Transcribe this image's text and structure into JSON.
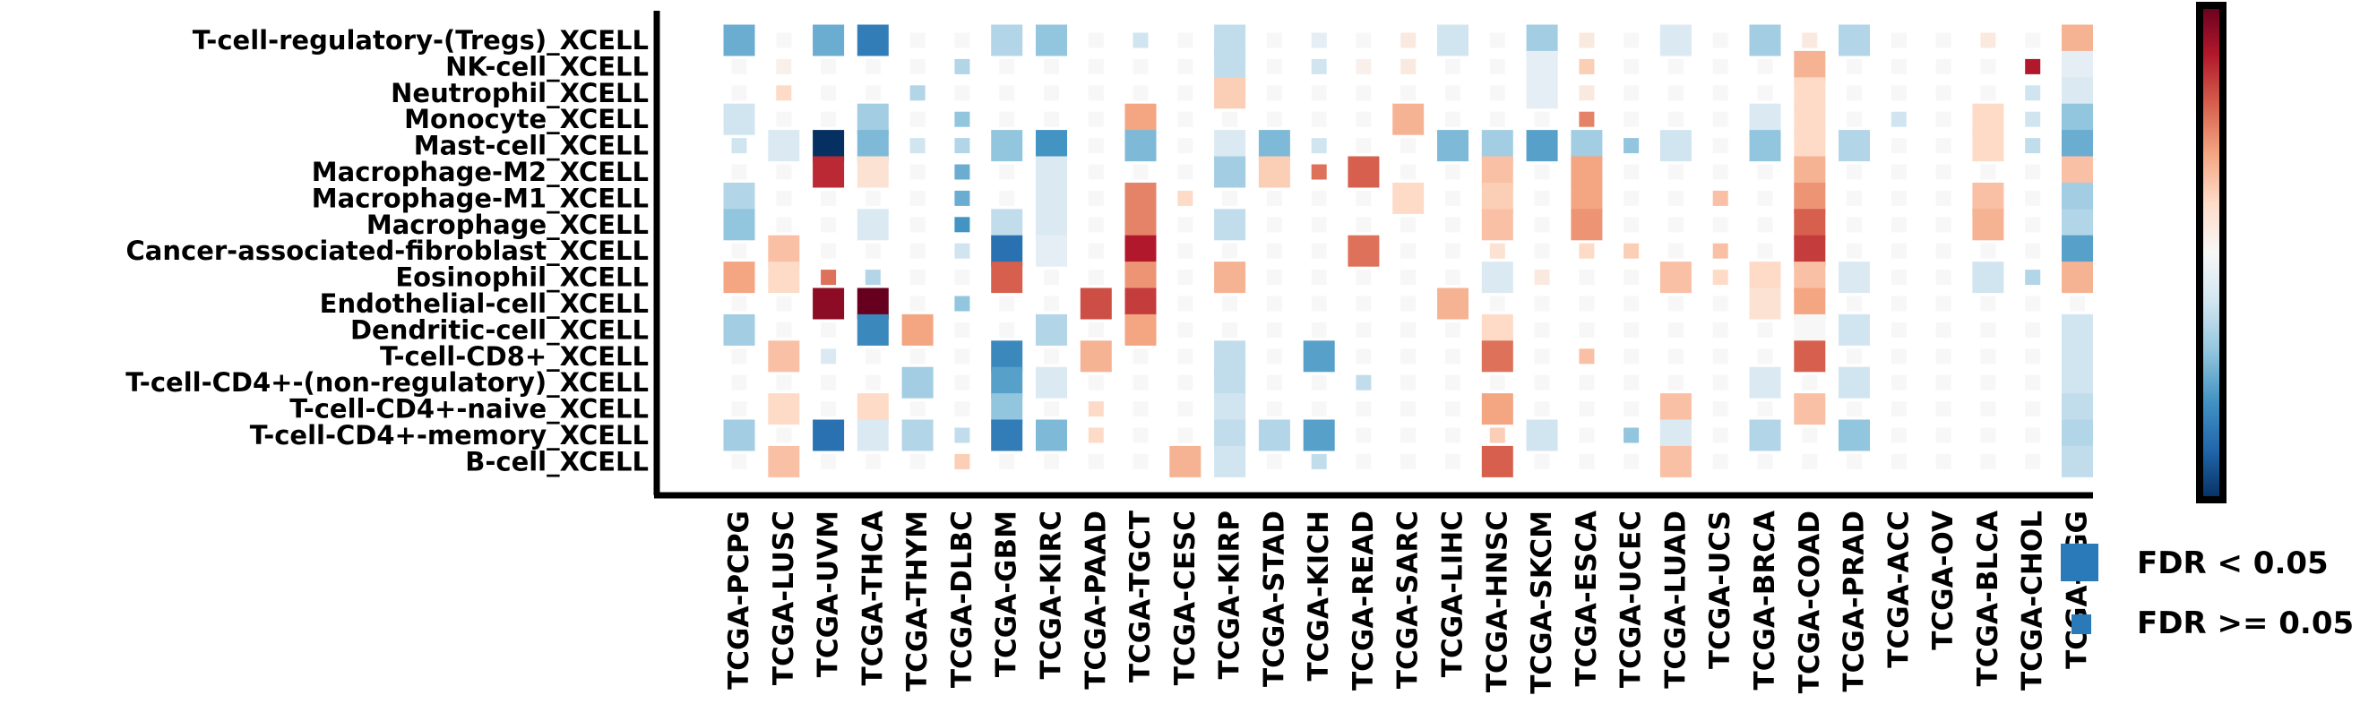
{
  "chart_data": {
    "type": "heatmap",
    "title": "",
    "xlabel": "",
    "ylabel": "",
    "rows": [
      "T-cell-regulatory-(Tregs)_XCELL",
      "NK-cell_XCELL",
      "Neutrophil_XCELL",
      "Monocyte_XCELL",
      "Mast-cell_XCELL",
      "Macrophage-M2_XCELL",
      "Macrophage-M1_XCELL",
      "Macrophage_XCELL",
      "Cancer-associated-fibroblast_XCELL",
      "Eosinophil_XCELL",
      "Endothelial-cell_XCELL",
      "Dendritic-cell_XCELL",
      "T-cell-CD8+_XCELL",
      "T-cell-CD4+-(non-regulatory)_XCELL",
      "T-cell-CD4+-naive_XCELL",
      "T-cell-CD4+-memory_XCELL",
      "B-cell_XCELL"
    ],
    "columns": [
      "TCGA-PCPG",
      "TCGA-LUSC",
      "TCGA-UVM",
      "TCGA-THCA",
      "TCGA-THYM",
      "TCGA-DLBC",
      "TCGA-GBM",
      "TCGA-KIRC",
      "TCGA-PAAD",
      "TCGA-TGCT",
      "TCGA-CESC",
      "TCGA-KIRP",
      "TCGA-STAD",
      "TCGA-KICH",
      "TCGA-READ",
      "TCGA-SARC",
      "TCGA-LIHC",
      "TCGA-HNSC",
      "TCGA-SKCM",
      "TCGA-ESCA",
      "TCGA-UCEC",
      "TCGA-LUAD",
      "TCGA-UCS",
      "TCGA-BRCA",
      "TCGA-COAD",
      "TCGA-PRAD",
      "TCGA-ACC",
      "TCGA-OV",
      "TCGA-BLCA",
      "TCGA-CHOL",
      "TCGA-LGG"
    ],
    "values": [
      [
        -0.5,
        0.0,
        -0.5,
        -0.7,
        0.0,
        0.0,
        -0.3,
        -0.4,
        0.0,
        -0.2,
        0.0,
        -0.25,
        0.0,
        -0.1,
        0.0,
        0.1,
        -0.2,
        0.0,
        -0.35,
        0.1,
        0.0,
        -0.15,
        0.0,
        -0.35,
        0.1,
        -0.3,
        0.0,
        0.0,
        0.1,
        0.0,
        0.35
      ],
      [
        0.0,
        0.05,
        0.0,
        0.0,
        0.0,
        -0.3,
        0.0,
        0.0,
        0.0,
        0.0,
        0.0,
        -0.25,
        0.0,
        -0.2,
        0.05,
        0.1,
        0.0,
        0.0,
        -0.1,
        0.25,
        0.0,
        0.0,
        0.0,
        0.0,
        0.35,
        0.0,
        0.0,
        0.0,
        0.0,
        0.8,
        -0.1
      ],
      [
        0.0,
        0.2,
        0.0,
        0.0,
        -0.3,
        0.0,
        0.0,
        0.0,
        0.0,
        0.0,
        0.0,
        0.25,
        0.0,
        0.0,
        0.0,
        0.0,
        0.0,
        0.0,
        -0.1,
        0.1,
        0.0,
        0.0,
        0.0,
        0.0,
        0.2,
        0.0,
        0.0,
        0.0,
        0.0,
        -0.2,
        -0.15
      ],
      [
        -0.2,
        0.0,
        0.0,
        -0.35,
        0.0,
        -0.4,
        0.0,
        0.0,
        0.0,
        0.4,
        0.0,
        0.0,
        0.0,
        0.0,
        0.0,
        0.35,
        0.0,
        0.0,
        0.0,
        0.5,
        0.0,
        0.0,
        0.0,
        -0.15,
        0.2,
        0.0,
        -0.2,
        0.0,
        0.2,
        -0.2,
        -0.4
      ],
      [
        -0.2,
        -0.15,
        -1.0,
        -0.45,
        -0.2,
        -0.3,
        -0.4,
        -0.6,
        0.0,
        -0.45,
        0.0,
        -0.15,
        -0.45,
        -0.2,
        0.0,
        0.0,
        -0.45,
        -0.35,
        -0.55,
        -0.35,
        -0.4,
        -0.2,
        0.0,
        -0.4,
        0.2,
        -0.3,
        0.0,
        0.0,
        0.2,
        -0.25,
        -0.5
      ],
      [
        0.0,
        0.0,
        0.75,
        0.15,
        0.0,
        -0.5,
        0.0,
        -0.15,
        0.0,
        0.0,
        0.0,
        -0.35,
        0.25,
        0.55,
        0.6,
        0.0,
        0.0,
        0.3,
        0.0,
        0.4,
        0.0,
        0.0,
        0.0,
        0.0,
        0.35,
        0.0,
        0.0,
        0.0,
        0.0,
        0.0,
        0.3
      ],
      [
        -0.3,
        0.0,
        0.0,
        0.0,
        0.0,
        -0.5,
        0.0,
        -0.15,
        0.0,
        0.5,
        0.2,
        0.0,
        0.0,
        0.0,
        0.0,
        0.2,
        0.0,
        0.25,
        0.0,
        0.4,
        0.0,
        0.0,
        0.3,
        0.0,
        0.45,
        0.0,
        0.0,
        0.0,
        0.3,
        0.0,
        -0.35
      ],
      [
        -0.4,
        0.0,
        0.0,
        -0.15,
        0.0,
        -0.6,
        -0.25,
        -0.15,
        0.0,
        0.5,
        0.0,
        -0.25,
        0.0,
        0.0,
        0.0,
        0.0,
        0.0,
        0.3,
        0.0,
        0.45,
        0.0,
        0.0,
        0.0,
        0.0,
        0.6,
        0.0,
        0.0,
        0.0,
        0.35,
        0.0,
        -0.3
      ],
      [
        0.0,
        0.3,
        0.0,
        0.0,
        0.0,
        -0.2,
        -0.75,
        -0.1,
        0.0,
        0.8,
        0.0,
        0.0,
        0.0,
        0.0,
        0.55,
        0.0,
        0.0,
        0.15,
        0.0,
        0.2,
        0.25,
        0.0,
        0.3,
        0.0,
        0.7,
        0.0,
        0.0,
        0.0,
        0.0,
        0.0,
        -0.55
      ],
      [
        0.4,
        0.2,
        0.55,
        -0.3,
        0.0,
        0.0,
        0.6,
        0.0,
        0.0,
        0.45,
        0.0,
        0.35,
        0.0,
        0.0,
        0.0,
        0.0,
        0.0,
        -0.15,
        0.1,
        0.0,
        0.0,
        0.3,
        0.2,
        0.2,
        0.3,
        -0.15,
        0.0,
        0.0,
        -0.2,
        -0.3,
        0.35
      ],
      [
        0.0,
        0.0,
        0.9,
        1.0,
        0.0,
        -0.4,
        0.0,
        0.0,
        0.65,
        0.7,
        0.0,
        0.0,
        0.0,
        0.0,
        0.0,
        0.0,
        0.35,
        0.0,
        0.0,
        0.0,
        0.0,
        0.0,
        0.0,
        0.15,
        0.4,
        0.0,
        0.0,
        0.0,
        0.0,
        0.0,
        0.0
      ],
      [
        -0.35,
        0.0,
        0.0,
        -0.65,
        0.4,
        0.0,
        0.0,
        -0.3,
        0.0,
        0.4,
        0.0,
        0.0,
        0.0,
        0.0,
        0.0,
        0.0,
        0.0,
        0.2,
        0.0,
        0.0,
        0.0,
        0.0,
        0.0,
        0.0,
        0.0,
        -0.2,
        0.0,
        0.0,
        0.0,
        0.0,
        -0.2
      ],
      [
        0.0,
        0.3,
        -0.15,
        0.0,
        0.0,
        0.0,
        -0.65,
        0.0,
        0.35,
        0.0,
        0.0,
        -0.25,
        0.0,
        -0.55,
        0.0,
        0.0,
        0.0,
        0.55,
        0.0,
        0.3,
        0.0,
        0.0,
        0.0,
        0.0,
        0.6,
        0.0,
        0.0,
        0.0,
        0.0,
        0.0,
        -0.2
      ],
      [
        0.0,
        0.0,
        0.0,
        0.0,
        -0.35,
        0.0,
        -0.55,
        -0.15,
        0.0,
        0.0,
        0.0,
        -0.25,
        0.0,
        0.0,
        -0.25,
        0.0,
        0.0,
        0.0,
        0.0,
        0.0,
        0.0,
        0.0,
        0.0,
        -0.15,
        0.0,
        -0.2,
        0.0,
        0.0,
        0.0,
        0.0,
        -0.2
      ],
      [
        0.0,
        0.2,
        0.0,
        0.2,
        0.0,
        0.0,
        -0.4,
        0.0,
        0.2,
        0.0,
        0.0,
        -0.2,
        0.0,
        0.0,
        0.0,
        0.0,
        0.0,
        0.4,
        0.0,
        0.0,
        0.0,
        0.3,
        0.0,
        0.0,
        0.3,
        0.0,
        0.0,
        0.0,
        0.0,
        0.0,
        -0.25
      ],
      [
        -0.35,
        0.0,
        -0.75,
        -0.15,
        -0.3,
        -0.25,
        -0.7,
        -0.45,
        0.2,
        0.0,
        0.0,
        -0.25,
        -0.3,
        -0.55,
        0.0,
        0.0,
        0.0,
        0.25,
        -0.2,
        0.0,
        -0.4,
        -0.15,
        0.0,
        -0.3,
        0.0,
        -0.4,
        0.0,
        0.0,
        0.0,
        0.0,
        -0.3
      ],
      [
        0.0,
        0.3,
        0.0,
        0.0,
        0.0,
        0.25,
        0.0,
        0.0,
        0.0,
        0.0,
        0.35,
        -0.2,
        0.0,
        -0.25,
        0.0,
        0.0,
        0.0,
        0.6,
        0.0,
        0.0,
        0.0,
        0.3,
        0.0,
        0.0,
        0.0,
        0.0,
        0.0,
        0.0,
        0.0,
        0.0,
        -0.25
      ]
    ],
    "significant": [
      [
        1,
        0,
        1,
        1,
        0,
        0,
        1,
        1,
        0,
        0,
        0,
        1,
        0,
        0,
        0,
        0,
        1,
        0,
        1,
        0,
        0,
        1,
        0,
        1,
        0,
        1,
        0,
        0,
        0,
        0,
        1
      ],
      [
        0,
        0,
        0,
        0,
        0,
        0,
        0,
        0,
        0,
        0,
        0,
        1,
        0,
        0,
        0,
        0,
        0,
        0,
        1,
        0,
        0,
        0,
        0,
        0,
        1,
        0,
        0,
        0,
        0,
        0,
        1
      ],
      [
        0,
        0,
        0,
        0,
        0,
        0,
        0,
        0,
        0,
        0,
        0,
        1,
        0,
        0,
        0,
        0,
        0,
        0,
        1,
        0,
        0,
        0,
        0,
        0,
        1,
        0,
        0,
        0,
        0,
        0,
        1
      ],
      [
        1,
        0,
        0,
        1,
        0,
        0,
        0,
        0,
        0,
        1,
        0,
        0,
        0,
        0,
        0,
        1,
        0,
        0,
        0,
        0,
        0,
        0,
        0,
        1,
        1,
        0,
        0,
        0,
        1,
        0,
        1
      ],
      [
        0,
        1,
        1,
        1,
        0,
        0,
        1,
        1,
        0,
        1,
        0,
        1,
        1,
        0,
        0,
        0,
        1,
        1,
        1,
        1,
        0,
        1,
        0,
        1,
        1,
        1,
        0,
        0,
        1,
        0,
        1
      ],
      [
        0,
        0,
        1,
        1,
        0,
        0,
        0,
        1,
        0,
        0,
        0,
        1,
        1,
        0,
        1,
        0,
        0,
        1,
        0,
        1,
        0,
        0,
        0,
        0,
        1,
        0,
        0,
        0,
        0,
        0,
        1
      ],
      [
        1,
        0,
        0,
        0,
        0,
        0,
        0,
        1,
        0,
        1,
        0,
        0,
        0,
        0,
        0,
        1,
        0,
        1,
        0,
        1,
        0,
        0,
        0,
        0,
        1,
        0,
        0,
        0,
        1,
        0,
        1
      ],
      [
        1,
        0,
        0,
        1,
        0,
        0,
        1,
        1,
        0,
        1,
        0,
        1,
        0,
        0,
        0,
        0,
        0,
        1,
        0,
        1,
        0,
        0,
        0,
        0,
        1,
        0,
        0,
        0,
        1,
        0,
        1
      ],
      [
        0,
        1,
        0,
        0,
        0,
        0,
        1,
        1,
        0,
        1,
        0,
        0,
        0,
        0,
        1,
        0,
        0,
        0,
        0,
        0,
        0,
        0,
        0,
        0,
        1,
        0,
        0,
        0,
        0,
        0,
        1
      ],
      [
        1,
        1,
        0,
        0,
        0,
        0,
        1,
        0,
        0,
        1,
        0,
        1,
        0,
        0,
        0,
        0,
        0,
        1,
        0,
        0,
        0,
        1,
        0,
        1,
        1,
        1,
        0,
        0,
        1,
        0,
        1
      ],
      [
        0,
        0,
        1,
        1,
        0,
        0,
        0,
        0,
        1,
        1,
        0,
        0,
        0,
        0,
        0,
        0,
        1,
        0,
        0,
        0,
        0,
        0,
        0,
        1,
        1,
        0,
        0,
        0,
        0,
        0,
        0
      ],
      [
        1,
        0,
        0,
        1,
        1,
        0,
        0,
        1,
        0,
        1,
        0,
        0,
        0,
        0,
        0,
        0,
        0,
        1,
        0,
        0,
        0,
        0,
        0,
        0,
        1,
        1,
        0,
        0,
        0,
        0,
        1
      ],
      [
        0,
        1,
        0,
        0,
        0,
        0,
        1,
        0,
        1,
        0,
        0,
        1,
        0,
        1,
        0,
        0,
        0,
        1,
        0,
        0,
        0,
        0,
        0,
        0,
        1,
        0,
        0,
        0,
        0,
        0,
        1
      ],
      [
        0,
        0,
        0,
        0,
        1,
        0,
        1,
        1,
        0,
        0,
        0,
        1,
        0,
        0,
        0,
        0,
        0,
        0,
        0,
        0,
        0,
        0,
        0,
        1,
        0,
        1,
        0,
        0,
        0,
        0,
        1
      ],
      [
        0,
        1,
        0,
        1,
        0,
        0,
        1,
        0,
        0,
        0,
        0,
        1,
        0,
        0,
        0,
        0,
        0,
        1,
        0,
        0,
        0,
        1,
        0,
        0,
        1,
        0,
        0,
        0,
        0,
        0,
        1
      ],
      [
        1,
        0,
        1,
        1,
        1,
        0,
        1,
        1,
        0,
        0,
        0,
        1,
        1,
        1,
        0,
        0,
        0,
        0,
        1,
        0,
        0,
        1,
        0,
        1,
        0,
        1,
        0,
        0,
        0,
        0,
        1
      ],
      [
        0,
        1,
        0,
        0,
        0,
        0,
        0,
        0,
        0,
        0,
        1,
        1,
        0,
        0,
        0,
        0,
        0,
        1,
        0,
        0,
        0,
        1,
        0,
        0,
        0,
        0,
        0,
        0,
        0,
        0,
        1
      ]
    ],
    "color_scale": {
      "colormap": "RdBu_r",
      "range": [
        -1,
        1
      ],
      "colors": [
        "#053061",
        "#2166ac",
        "#4393c3",
        "#92c5de",
        "#d1e5f0",
        "#f7f7f7",
        "#fddbc7",
        "#f4a582",
        "#d6604d",
        "#b2182b",
        "#67001f"
      ]
    },
    "legend": {
      "placement": "right",
      "entries": [
        {
          "label": "FDR < 0.05",
          "marker_color": "#2a7ab9",
          "size": "large"
        },
        {
          "label": "FDR >= 0.05",
          "marker_color": "#2a7ab9",
          "size": "small"
        }
      ]
    },
    "grid": false
  }
}
